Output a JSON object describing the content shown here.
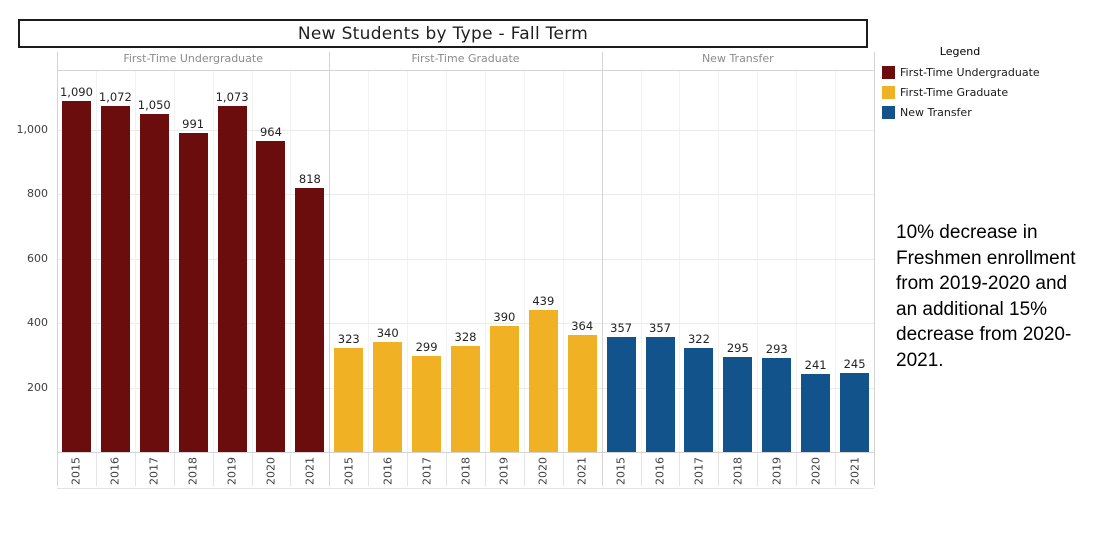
{
  "title": "New Students by Type - Fall Term",
  "legend": {
    "title": "Legend",
    "items": [
      {
        "label": "First-Time Undergraduate",
        "color": "#6b0c0d"
      },
      {
        "label": "First-Time Graduate",
        "color": "#f0b125"
      },
      {
        "label": "New Transfer",
        "color": "#13538c"
      }
    ]
  },
  "annotation": "10% decrease in Freshmen enrollment from 2019-2020 and an additional 15% decrease from 2020-2021.",
  "chart_data": {
    "type": "bar",
    "layout": "faceted",
    "title": "New Students by Type - Fall Term",
    "categories": [
      "2015",
      "2016",
      "2017",
      "2018",
      "2019",
      "2020",
      "2021"
    ],
    "series": [
      {
        "name": "First-Time Undergraduate",
        "color": "#6b0c0d",
        "values": [
          1090,
          1072,
          1050,
          991,
          1073,
          964,
          818
        ]
      },
      {
        "name": "First-Time Graduate",
        "color": "#f0b125",
        "values": [
          323,
          340,
          299,
          328,
          390,
          439,
          364
        ]
      },
      {
        "name": "New Transfer",
        "color": "#13538c",
        "values": [
          357,
          357,
          322,
          295,
          293,
          241,
          245
        ]
      }
    ],
    "ylim": [
      0,
      1185
    ],
    "yticks": [
      200,
      400,
      600,
      800,
      1000
    ],
    "grid": true,
    "value_labels": true,
    "legend_position": "right",
    "xlabel": "",
    "ylabel": ""
  }
}
